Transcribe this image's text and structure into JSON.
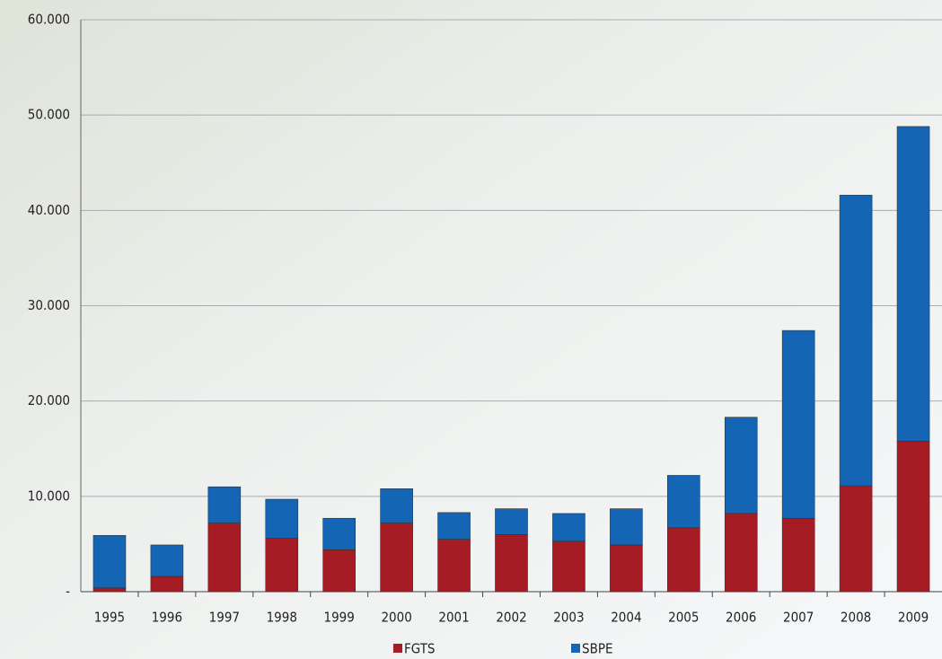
{
  "chart_data": {
    "type": "stacked_bar",
    "categories": [
      "1995",
      "1996",
      "1997",
      "1998",
      "1999",
      "2000",
      "2001",
      "2002",
      "2003",
      "2004",
      "2005",
      "2006",
      "2007",
      "2008",
      "2009"
    ],
    "series": [
      {
        "name": "FGTS",
        "color": "#a51c24",
        "values": [
          400,
          1600,
          7200,
          5600,
          4400,
          7200,
          5500,
          6000,
          5300,
          4900,
          6700,
          8200,
          7700,
          11100,
          15800
        ]
      },
      {
        "name": "SBPE",
        "color": "#1565b5",
        "values": [
          5500,
          3300,
          3800,
          4100,
          3300,
          3600,
          2800,
          2700,
          2900,
          3800,
          5500,
          10100,
          19700,
          30500,
          33000
        ]
      }
    ],
    "ylim": [
      0,
      60000
    ],
    "yticks": [
      {
        "value": 0,
        "label": "-"
      },
      {
        "value": 10000,
        "label": "10.000"
      },
      {
        "value": 20000,
        "label": "20.000"
      },
      {
        "value": 30000,
        "label": "30.000"
      },
      {
        "value": 40000,
        "label": "40.000"
      },
      {
        "value": 50000,
        "label": "50.000"
      },
      {
        "value": 60000,
        "label": "60.000"
      }
    ],
    "grid": true
  }
}
